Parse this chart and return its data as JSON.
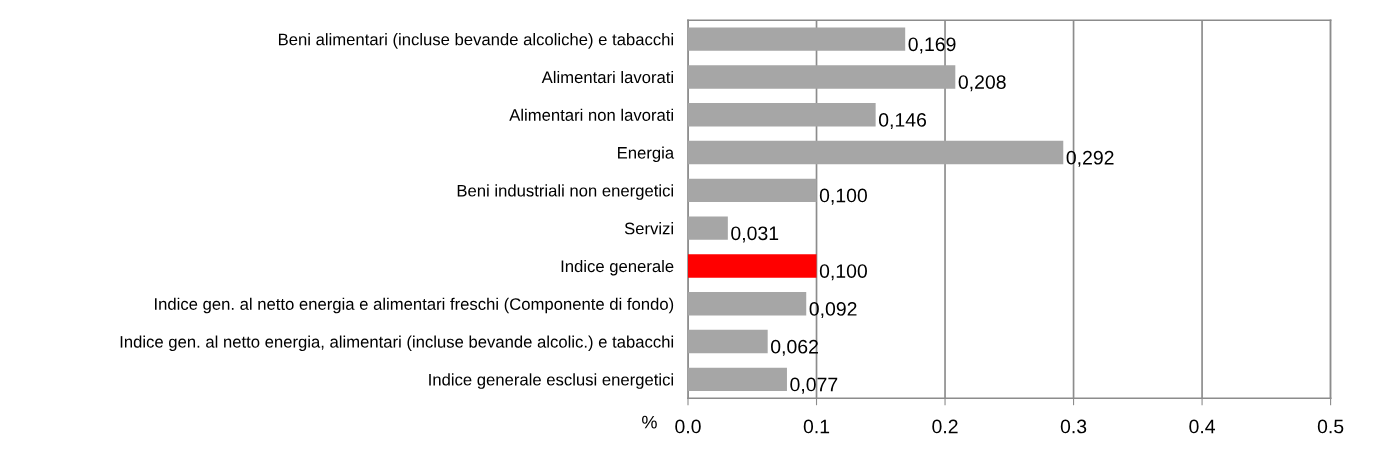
{
  "chart_data": {
    "type": "bar",
    "orientation": "horizontal",
    "xlabel": "%",
    "categories": [
      "Beni alimentari (incluse bevande alcoliche) e tabacchi",
      "Alimentari lavorati",
      "Alimentari non lavorati",
      "Energia",
      "Beni industriali non energetici",
      "Servizi",
      "Indice generale",
      "Indice gen. al netto energia e alimentari freschi (Componente di fondo)",
      "Indice gen. al netto energia, alimentari (incluse bevande alcolic.) e tabacchi",
      "Indice generale esclusi energetici"
    ],
    "values": [
      0.169,
      0.208,
      0.146,
      0.292,
      0.1,
      0.031,
      0.1,
      0.092,
      0.062,
      0.077
    ],
    "value_labels": [
      "0,169",
      "0,208",
      "0,146",
      "0,292",
      "0,100",
      "0,031",
      "0,100",
      "0,092",
      "0,062",
      "0,077"
    ],
    "colors": [
      "#a6a6a6",
      "#a6a6a6",
      "#a6a6a6",
      "#a6a6a6",
      "#a6a6a6",
      "#a6a6a6",
      "#ff0000",
      "#a6a6a6",
      "#a6a6a6",
      "#a6a6a6"
    ],
    "xlim": [
      0,
      0.5
    ],
    "xticks": [
      {
        "value": 0,
        "label": "0.0"
      },
      0.1,
      0.2,
      0.3,
      0.4,
      0.5
    ],
    "grid": "x",
    "legend": false
  }
}
